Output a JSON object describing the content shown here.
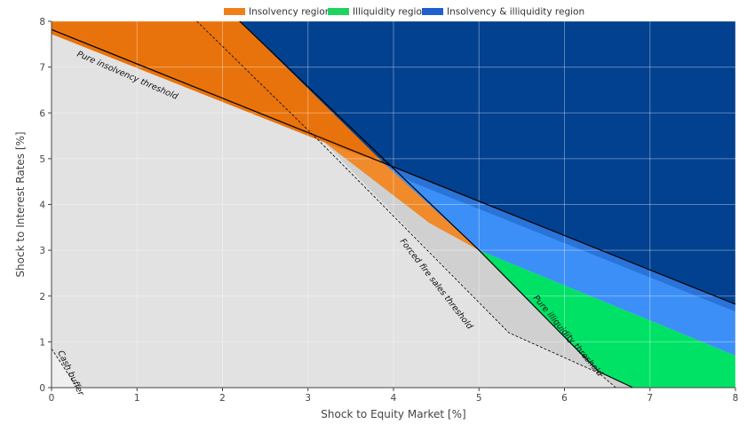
{
  "chart_data": {
    "type": "area",
    "xlabel": "Shock to Equity Market [%]",
    "ylabel": "Shock to Interest Rates [%]",
    "xlim": [
      0,
      8
    ],
    "ylim": [
      0,
      8
    ],
    "x_ticks": [
      "0",
      "1",
      "2",
      "3",
      "4",
      "5",
      "6",
      "7",
      "8"
    ],
    "y_ticks": [
      "0",
      "1",
      "2",
      "3",
      "4",
      "5",
      "6",
      "7",
      "8"
    ],
    "grid": true,
    "legend_position": "top-center",
    "legend": [
      {
        "label": "Insolvency region",
        "color": "#f07f1a"
      },
      {
        "label": "Illiquidity region",
        "color": "#1ed45f"
      },
      {
        "label": "Insolvency & illiquidity region",
        "color": "#1f5fd0"
      }
    ],
    "regions": [
      {
        "name": "Insolvency region",
        "color": "#e8730c",
        "points": [
          [
            0,
            7.72
          ],
          [
            4.42,
            4.45
          ],
          [
            5.05,
            3.0
          ],
          [
            4.4,
            3.55
          ],
          [
            3.2,
            5.35
          ],
          [
            3.18,
            5.38
          ],
          [
            0,
            7.72
          ],
          [
            0,
            8
          ],
          [
            2.2,
            8
          ],
          [
            3.9,
            4.9
          ],
          [
            0,
            7.75
          ]
        ]
      },
      {
        "name": "Illiquidity region",
        "color": "#00e266",
        "points": [
          [
            5.0,
            3.0
          ],
          [
            8,
            0.7
          ],
          [
            8,
            0
          ],
          [
            6.8,
            0
          ],
          [
            6.4,
            0.35
          ]
        ]
      },
      {
        "name": "Insolvency & illiquidity region",
        "color": "#3c8ff7",
        "points": [
          [
            3.9,
            4.9
          ],
          [
            8,
            1.72
          ],
          [
            8,
            0.7
          ],
          [
            5.0,
            3.0
          ]
        ]
      },
      {
        "name": "Insolvency & illiquidity region",
        "color": "#02418f",
        "points": [
          [
            2.2,
            8
          ],
          [
            8,
            8
          ],
          [
            8,
            1.82
          ],
          [
            3.9,
            4.88
          ]
        ]
      }
    ],
    "thresholds": [
      {
        "label": "Pure insolvency threshold",
        "style": "solid",
        "points": [
          [
            0,
            7.82
          ],
          [
            8,
            1.82
          ]
        ]
      },
      {
        "label": "Pure illiquidity threshold",
        "style": "solid",
        "points": [
          [
            2.2,
            8
          ],
          [
            5.0,
            3.0
          ],
          [
            6.4,
            0.35
          ],
          [
            6.8,
            0
          ]
        ]
      },
      {
        "label": "Forced fire sales threshold",
        "style": "dashed",
        "points": [
          [
            1.7,
            8
          ],
          [
            3.15,
            5.35
          ],
          [
            5.35,
            1.2
          ],
          [
            6.4,
            0.32
          ],
          [
            6.6,
            0
          ]
        ]
      },
      {
        "label": "Cash buffer",
        "style": "dashed",
        "points": [
          [
            0,
            0.85
          ],
          [
            0.3,
            0
          ]
        ]
      }
    ]
  }
}
